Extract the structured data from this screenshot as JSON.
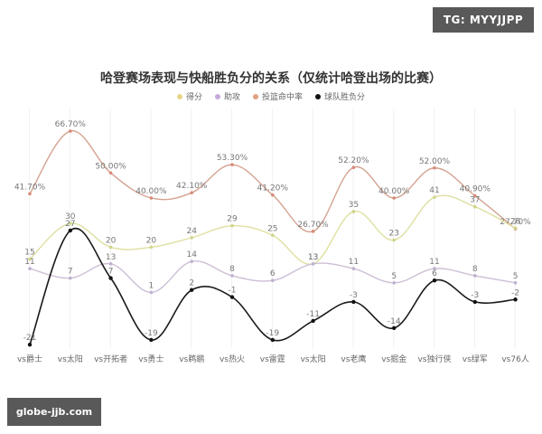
{
  "watermarks": {
    "top_right": "TG: MYYJJPP",
    "bottom_left": "globe-jjb.com"
  },
  "chart_data": {
    "type": "line",
    "title": "哈登赛场表现与快船胜负分的关系（仅统计哈登出场的比赛）",
    "xlabel": "",
    "ylabel": "",
    "grid": "vertical",
    "legend_position": "top",
    "categories": [
      "vs爵士",
      "vs太阳",
      "vs开拓者",
      "vs勇士",
      "vs鹈鹕",
      "vs热火",
      "vs雷霆",
      "vs太阳",
      "vs老鹰",
      "vs掘金",
      "vs独行侠",
      "vs绿军",
      "vs76人"
    ],
    "series": [
      {
        "name": "得分",
        "color": "#e3e3a0",
        "values": [
          15,
          30,
          20,
          20,
          24,
          29,
          25,
          13,
          35,
          23,
          41,
          37,
          28
        ]
      },
      {
        "name": "助攻",
        "color": "#c9b8d8",
        "values": [
          11,
          7,
          13,
          1,
          14,
          8,
          6,
          13,
          11,
          5,
          11,
          8,
          5
        ]
      },
      {
        "name": "投篮命中率",
        "color": "#d9a08a",
        "values": [
          41.7,
          66.7,
          50.0,
          40.0,
          42.1,
          53.3,
          41.2,
          26.7,
          52.2,
          40.0,
          52.0,
          40.9,
          27.7
        ],
        "labels": [
          "41.70%",
          "66.70%",
          "50.00%",
          "40.00%",
          "42.10%",
          "53.30%",
          "41.20%",
          "26.70%",
          "52.20%",
          "40.00%",
          "52.00%",
          "40.90%",
          "27.70%"
        ]
      },
      {
        "name": "球队胜负分",
        "color": "#222222",
        "values": [
          -21,
          27,
          7,
          -19,
          2,
          -1,
          -19,
          -11,
          -3,
          -14,
          6,
          -3,
          -2
        ]
      }
    ]
  }
}
